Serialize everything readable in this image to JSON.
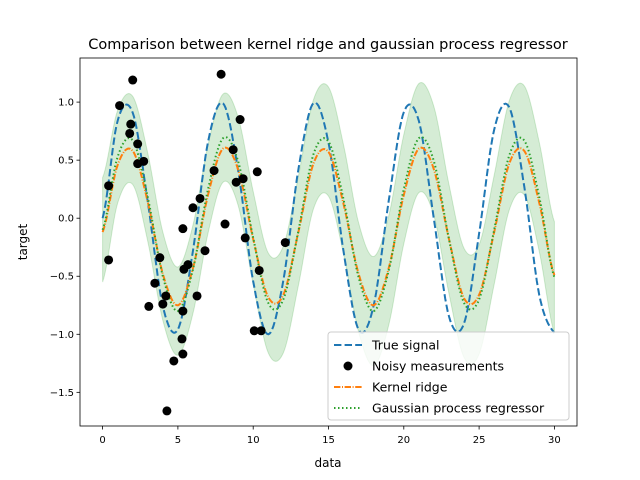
{
  "chart_data": {
    "type": "line",
    "title": "Comparison between kernel ridge and gaussian process regressor",
    "xlabel": "data",
    "ylabel": "target",
    "xlim": [
      -1.5,
      31.5
    ],
    "ylim": [
      -1.79,
      1.38
    ],
    "xticks": [
      0,
      5,
      10,
      15,
      20,
      25,
      30
    ],
    "xtick_labels": [
      "0",
      "5",
      "10",
      "15",
      "20",
      "25",
      "30"
    ],
    "yticks": [
      -1.5,
      -1.0,
      -0.5,
      0.0,
      0.5,
      1.0
    ],
    "ytick_labels": [
      "−1.5",
      "−1.0",
      "−0.5",
      "0.0",
      "0.5",
      "1.0"
    ],
    "grid": false,
    "legend_placement": "lower-right",
    "curve_x": [
      0,
      1,
      2,
      3,
      4,
      5,
      6,
      7,
      8,
      9,
      10,
      11,
      12,
      13,
      14,
      15,
      16,
      17,
      18,
      19,
      20,
      21,
      22,
      23,
      24,
      25,
      26,
      27,
      28,
      29,
      30
    ],
    "series": [
      {
        "name": "True signal",
        "style": "dashed",
        "color": "#1f77b4",
        "y": [
          0,
          0.841,
          0.909,
          0.141,
          -0.757,
          -0.959,
          -0.279,
          0.657,
          0.989,
          0.412,
          -0.544,
          -1.0,
          -0.537,
          0.42,
          0.991,
          0.65,
          -0.288,
          -0.961,
          -0.751,
          0.15,
          0.913,
          0.837,
          -0.009,
          -0.846,
          -0.906,
          -0.132,
          0.763,
          0.956,
          0.271,
          -0.664,
          -0.988
        ]
      },
      {
        "name": "Kernel ridge",
        "style": "dashdot",
        "color": "#ff7f0e",
        "y": [
          -0.12,
          0.46,
          0.58,
          0.14,
          -0.48,
          -0.75,
          -0.43,
          0.2,
          0.6,
          0.42,
          -0.18,
          -0.68,
          -0.66,
          -0.12,
          0.47,
          0.57,
          0.12,
          -0.48,
          -0.75,
          -0.43,
          0.2,
          0.6,
          0.42,
          -0.18,
          -0.69,
          -0.66,
          -0.12,
          0.47,
          0.58,
          0.13,
          -0.49
        ]
      },
      {
        "name": "Gaussian process regressor",
        "style": "dotted",
        "color": "#2ca02c",
        "y": [
          -0.1,
          0.53,
          0.67,
          0.18,
          -0.5,
          -0.8,
          -0.44,
          0.25,
          0.69,
          0.49,
          -0.17,
          -0.73,
          -0.7,
          -0.11,
          0.55,
          0.66,
          0.16,
          -0.51,
          -0.8,
          -0.45,
          0.25,
          0.69,
          0.49,
          -0.18,
          -0.73,
          -0.7,
          -0.1,
          0.54,
          0.67,
          0.18,
          -0.51
        ]
      }
    ],
    "gp_uncertainty": {
      "color": "#2ca02c",
      "halfwidth": [
        0.45,
        0.4,
        0.38,
        0.38,
        0.38,
        0.38,
        0.38,
        0.38,
        0.38,
        0.38,
        0.4,
        0.43,
        0.46,
        0.47,
        0.47,
        0.47,
        0.47,
        0.47,
        0.47,
        0.47,
        0.47,
        0.47,
        0.47,
        0.47,
        0.47,
        0.47,
        0.47,
        0.47,
        0.47,
        0.47,
        0.48
      ]
    },
    "scatter": {
      "name": "Noisy measurements",
      "color": "#000000",
      "x": [
        0.4,
        0.4,
        1.13,
        2.0,
        1.87,
        1.8,
        2.33,
        2.33,
        2.73,
        3.07,
        3.47,
        3.8,
        4.0,
        4.2,
        4.27,
        4.73,
        5.27,
        5.33,
        5.33,
        5.33,
        5.4,
        5.67,
        6.0,
        6.27,
        6.47,
        6.8,
        7.4,
        7.87,
        8.13,
        8.67,
        8.87,
        9.13,
        9.33,
        9.47,
        10.07,
        10.27,
        10.4,
        10.53,
        12.13
      ],
      "y": [
        -0.36,
        0.28,
        0.97,
        1.19,
        0.81,
        0.73,
        0.64,
        0.47,
        0.49,
        -0.76,
        -0.56,
        -0.34,
        -0.74,
        -0.67,
        -1.66,
        -1.23,
        -1.04,
        -0.8,
        -0.09,
        -1.17,
        -0.44,
        -0.4,
        0.09,
        -0.67,
        0.17,
        -0.28,
        0.41,
        1.24,
        -0.05,
        0.59,
        0.31,
        0.85,
        0.34,
        -0.17,
        -0.97,
        0.4,
        -0.45,
        -0.97,
        -0.21
      ]
    },
    "legend": [
      "True signal",
      "Noisy measurements",
      "Kernel ridge",
      "Gaussian process regressor"
    ]
  }
}
